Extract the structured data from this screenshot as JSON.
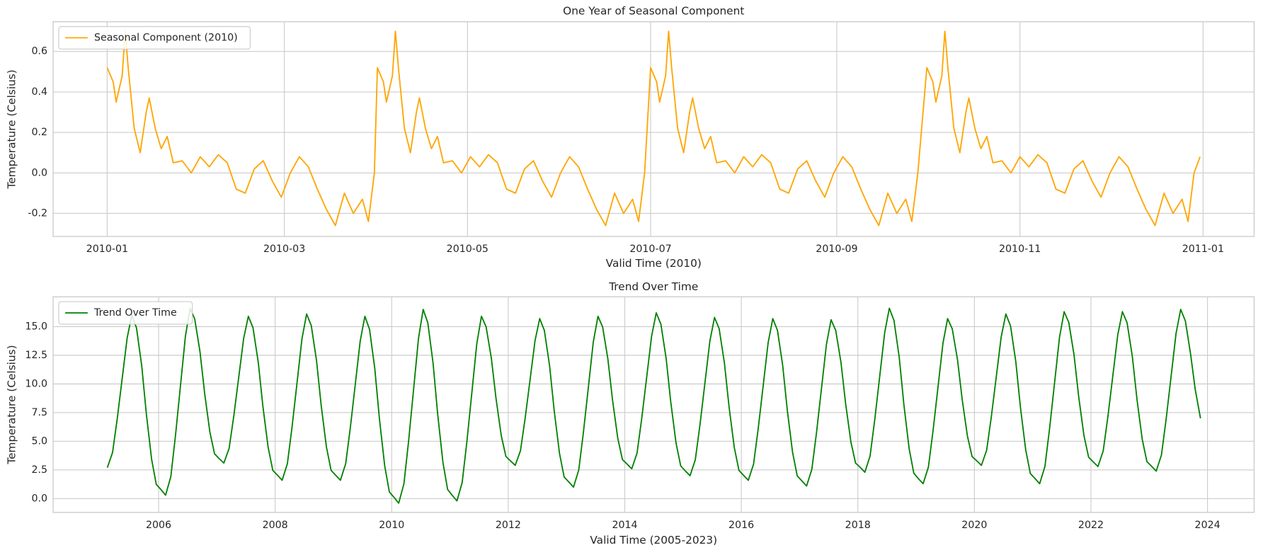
{
  "chart_data": [
    {
      "type": "line",
      "title": "One Year of Seasonal Component",
      "xlabel": "Valid Time (2010)",
      "ylabel": "Temperature (Celsius)",
      "grid": true,
      "legend": "upper left",
      "xlim": [
        "2009-12-14",
        "2011-01-18"
      ],
      "xticks": [
        {
          "value": "2010-01-01",
          "label": "2010-01"
        },
        {
          "value": "2010-03-01",
          "label": "2010-03"
        },
        {
          "value": "2010-05-01",
          "label": "2010-05"
        },
        {
          "value": "2010-07-01",
          "label": "2010-07"
        },
        {
          "value": "2010-09-01",
          "label": "2010-09"
        },
        {
          "value": "2010-11-01",
          "label": "2010-11"
        },
        {
          "value": "2011-01-01",
          "label": "2011-01"
        }
      ],
      "ylim": [
        -0.314,
        0.747
      ],
      "yticks": [
        -0.2,
        {
          "value": 0,
          "label": "0.0"
        },
        0.2,
        0.4,
        0.6
      ],
      "x": [
        "2010-01-01",
        "2010-01-03",
        "2010-01-04",
        "2010-01-06",
        "2010-01-07",
        "2010-01-08",
        "2010-01-10",
        "2010-01-12",
        "2010-01-14",
        "2010-01-15",
        "2010-01-17",
        "2010-01-19",
        "2010-01-21",
        "2010-01-23",
        "2010-01-26",
        "2010-01-29",
        "2010-02-01",
        "2010-02-04",
        "2010-02-07",
        "2010-02-10",
        "2010-02-13",
        "2010-02-16",
        "2010-02-19",
        "2010-02-22",
        "2010-02-25",
        "2010-02-28",
        "2010-03-03",
        "2010-03-06",
        "2010-03-09",
        "2010-03-12",
        "2010-03-15",
        "2010-03-18",
        "2010-03-21",
        "2010-03-24",
        "2010-03-27",
        "2010-03-29",
        "2010-03-31",
        "2010-04-01",
        "2010-04-03",
        "2010-04-04",
        "2010-04-06",
        "2010-04-07",
        "2010-04-08",
        "2010-04-10",
        "2010-04-12",
        "2010-04-14",
        "2010-04-15",
        "2010-04-17",
        "2010-04-19",
        "2010-04-21",
        "2010-04-23",
        "2010-04-26",
        "2010-04-29",
        "2010-05-02",
        "2010-05-05",
        "2010-05-08",
        "2010-05-11",
        "2010-05-14",
        "2010-05-17",
        "2010-05-20",
        "2010-05-23",
        "2010-05-26",
        "2010-05-29",
        "2010-06-01",
        "2010-06-04",
        "2010-06-07",
        "2010-06-10",
        "2010-06-13",
        "2010-06-16",
        "2010-06-19",
        "2010-06-22",
        "2010-06-25",
        "2010-06-27",
        "2010-06-29",
        "2010-07-01",
        "2010-07-03",
        "2010-07-04",
        "2010-07-06",
        "2010-07-07",
        "2010-07-08",
        "2010-07-10",
        "2010-07-12",
        "2010-07-14",
        "2010-07-15",
        "2010-07-17",
        "2010-07-19",
        "2010-07-21",
        "2010-07-23",
        "2010-07-26",
        "2010-07-29",
        "2010-08-01",
        "2010-08-04",
        "2010-08-07",
        "2010-08-10",
        "2010-08-13",
        "2010-08-16",
        "2010-08-19",
        "2010-08-22",
        "2010-08-25",
        "2010-08-28",
        "2010-08-31",
        "2010-09-03",
        "2010-09-06",
        "2010-09-09",
        "2010-09-12",
        "2010-09-15",
        "2010-09-18",
        "2010-09-21",
        "2010-09-24",
        "2010-09-26",
        "2010-09-28",
        "2010-10-01",
        "2010-10-03",
        "2010-10-04",
        "2010-10-06",
        "2010-10-07",
        "2010-10-08",
        "2010-10-10",
        "2010-10-12",
        "2010-10-14",
        "2010-10-15",
        "2010-10-17",
        "2010-10-19",
        "2010-10-21",
        "2010-10-23",
        "2010-10-26",
        "2010-10-29",
        "2010-11-01",
        "2010-11-04",
        "2010-11-07",
        "2010-11-10",
        "2010-11-13",
        "2010-11-16",
        "2010-11-19",
        "2010-11-22",
        "2010-11-25",
        "2010-11-28",
        "2010-12-01",
        "2010-12-04",
        "2010-12-07",
        "2010-12-10",
        "2010-12-13",
        "2010-12-16",
        "2010-12-19",
        "2010-12-22",
        "2010-12-25",
        "2010-12-27",
        "2010-12-29",
        "2010-12-31"
      ],
      "series": [
        {
          "name": "Seasonal Component (2010)",
          "color": "#ffa500",
          "values": [
            0.52,
            0.45,
            0.35,
            0.48,
            0.7,
            0.52,
            0.22,
            0.1,
            0.3,
            0.37,
            0.22,
            0.12,
            0.18,
            0.05,
            0.06,
            0.0,
            0.08,
            0.03,
            0.09,
            0.05,
            -0.08,
            -0.1,
            0.02,
            0.06,
            -0.04,
            -0.12,
            0.0,
            0.08,
            0.03,
            -0.08,
            -0.18,
            -0.26,
            -0.1,
            -0.2,
            -0.13,
            -0.24,
            0.0,
            0.52,
            0.45,
            0.35,
            0.48,
            0.7,
            0.52,
            0.22,
            0.1,
            0.3,
            0.37,
            0.22,
            0.12,
            0.18,
            0.05,
            0.06,
            0.0,
            0.08,
            0.03,
            0.09,
            0.05,
            -0.08,
            -0.1,
            0.02,
            0.06,
            -0.04,
            -0.12,
            0.0,
            0.08,
            0.03,
            -0.08,
            -0.18,
            -0.26,
            -0.1,
            -0.2,
            -0.13,
            -0.24,
            0.0,
            0.52,
            0.45,
            0.35,
            0.48,
            0.7,
            0.52,
            0.22,
            0.1,
            0.3,
            0.37,
            0.22,
            0.12,
            0.18,
            0.05,
            0.06,
            0.0,
            0.08,
            0.03,
            0.09,
            0.05,
            -0.08,
            -0.1,
            0.02,
            0.06,
            -0.04,
            -0.12,
            0.0,
            0.08,
            0.03,
            -0.08,
            -0.18,
            -0.26,
            -0.1,
            -0.2,
            -0.13,
            -0.24,
            0.0,
            0.52,
            0.45,
            0.35,
            0.48,
            0.7,
            0.52,
            0.22,
            0.1,
            0.3,
            0.37,
            0.22,
            0.12,
            0.18,
            0.05,
            0.06,
            0.0,
            0.08,
            0.03,
            0.09,
            0.05,
            -0.08,
            -0.1,
            0.02,
            0.06,
            -0.04,
            -0.12,
            0.0,
            0.08,
            0.03,
            -0.08,
            -0.18,
            -0.26,
            -0.1,
            -0.2,
            -0.13,
            -0.24,
            0.0,
            0.08
          ]
        }
      ]
    },
    {
      "type": "line",
      "title": "Trend Over Time",
      "xlabel": "Valid Time (2005-2023)",
      "ylabel": "Temperature (Celsius)",
      "grid": true,
      "legend": "upper left",
      "xlim": [
        2004.19,
        2024.8
      ],
      "xticks": [
        2006,
        2008,
        2010,
        2012,
        2014,
        2016,
        2018,
        2020,
        2022,
        2024
      ],
      "ylim": [
        -1.2,
        17.6
      ],
      "yticks": [
        {
          "value": 0,
          "label": "0.0"
        },
        2.5,
        {
          "value": 5,
          "label": "5.0"
        },
        7.5,
        {
          "value": 10,
          "label": "10.0"
        },
        12.5,
        {
          "value": 15,
          "label": "15.0"
        }
      ],
      "x": [
        2005.12,
        2005.21,
        2005.29,
        2005.38,
        2005.46,
        2005.54,
        2005.62,
        2005.71,
        2005.79,
        2005.88,
        2005.96,
        2006.04,
        2006.12,
        2006.21,
        2006.29,
        2006.38,
        2006.46,
        2006.54,
        2006.62,
        2006.71,
        2006.79,
        2006.88,
        2006.96,
        2007.04,
        2007.12,
        2007.21,
        2007.29,
        2007.38,
        2007.46,
        2007.54,
        2007.62,
        2007.71,
        2007.79,
        2007.88,
        2007.96,
        2008.04,
        2008.12,
        2008.21,
        2008.29,
        2008.38,
        2008.46,
        2008.54,
        2008.62,
        2008.71,
        2008.79,
        2008.88,
        2008.96,
        2009.04,
        2009.12,
        2009.21,
        2009.29,
        2009.38,
        2009.46,
        2009.54,
        2009.62,
        2009.71,
        2009.79,
        2009.88,
        2009.96,
        2010.04,
        2010.12,
        2010.21,
        2010.29,
        2010.38,
        2010.46,
        2010.54,
        2010.62,
        2010.71,
        2010.79,
        2010.88,
        2010.96,
        2011.04,
        2011.12,
        2011.21,
        2011.29,
        2011.38,
        2011.46,
        2011.54,
        2011.62,
        2011.71,
        2011.79,
        2011.88,
        2011.96,
        2012.04,
        2012.12,
        2012.21,
        2012.29,
        2012.38,
        2012.46,
        2012.54,
        2012.62,
        2012.71,
        2012.79,
        2012.88,
        2012.96,
        2013.04,
        2013.12,
        2013.21,
        2013.29,
        2013.38,
        2013.46,
        2013.54,
        2013.62,
        2013.71,
        2013.79,
        2013.88,
        2013.96,
        2014.04,
        2014.12,
        2014.21,
        2014.29,
        2014.38,
        2014.46,
        2014.54,
        2014.62,
        2014.71,
        2014.79,
        2014.88,
        2014.96,
        2015.04,
        2015.12,
        2015.21,
        2015.29,
        2015.38,
        2015.46,
        2015.54,
        2015.62,
        2015.71,
        2015.79,
        2015.88,
        2015.96,
        2016.04,
        2016.12,
        2016.21,
        2016.29,
        2016.38,
        2016.46,
        2016.54,
        2016.62,
        2016.71,
        2016.79,
        2016.88,
        2016.96,
        2017.04,
        2017.12,
        2017.21,
        2017.29,
        2017.38,
        2017.46,
        2017.54,
        2017.62,
        2017.71,
        2017.79,
        2017.88,
        2017.96,
        2018.04,
        2018.12,
        2018.21,
        2018.29,
        2018.38,
        2018.46,
        2018.54,
        2018.62,
        2018.71,
        2018.79,
        2018.88,
        2018.96,
        2019.04,
        2019.12,
        2019.21,
        2019.29,
        2019.38,
        2019.46,
        2019.54,
        2019.62,
        2019.71,
        2019.79,
        2019.88,
        2019.96,
        2020.04,
        2020.12,
        2020.21,
        2020.29,
        2020.38,
        2020.46,
        2020.54,
        2020.62,
        2020.71,
        2020.79,
        2020.88,
        2020.96,
        2021.04,
        2021.12,
        2021.21,
        2021.29,
        2021.38,
        2021.46,
        2021.54,
        2021.62,
        2021.71,
        2021.79,
        2021.88,
        2021.96,
        2022.04,
        2022.12,
        2022.21,
        2022.29,
        2022.38,
        2022.46,
        2022.54,
        2022.62,
        2022.71,
        2022.79,
        2022.88,
        2022.96,
        2023.04,
        2023.12,
        2023.21,
        2023.29,
        2023.38,
        2023.46,
        2023.54,
        2023.62,
        2023.71,
        2023.79,
        2023.88
      ],
      "series": [
        {
          "name": "Trend Over Time",
          "color": "#008000",
          "values": [
            2.7,
            4.03,
            6.96,
            10.68,
            14.0,
            16.0,
            14.9,
            11.6,
            7.37,
            3.44,
            1.24,
            0.79,
            0.3,
            1.93,
            5.52,
            10.08,
            14.16,
            16.6,
            15.66,
            12.82,
            9.18,
            5.8,
            3.91,
            3.48,
            3.1,
            4.38,
            7.2,
            10.78,
            13.98,
            15.9,
            14.9,
            11.9,
            8.04,
            4.46,
            2.46,
            2.04,
            1.6,
            3.05,
            6.24,
            10.3,
            13.93,
            16.1,
            15.09,
            12.04,
            8.13,
            4.5,
            2.47,
            2.03,
            1.6,
            3.03,
            6.18,
            10.18,
            13.76,
            15.9,
            14.76,
            11.34,
            6.94,
            2.86,
            0.58,
            0.11,
            -0.4,
            1.29,
            5.01,
            9.74,
            13.97,
            16.5,
            15.33,
            11.82,
            7.32,
            3.14,
            0.8,
            0.28,
            -0.2,
            1.41,
            4.95,
            9.46,
            13.49,
            15.9,
            14.99,
            12.26,
            8.75,
            5.5,
            3.68,
            3.28,
            2.9,
            4.18,
            7.0,
            10.58,
            13.78,
            15.7,
            14.67,
            11.58,
            7.62,
            3.94,
            1.88,
            1.45,
            1.0,
            2.49,
            5.77,
            9.94,
            13.67,
            15.9,
            14.97,
            12.18,
            8.59,
            5.26,
            3.4,
            3.01,
            2.6,
            3.96,
            6.95,
            10.76,
            14.16,
            16.2,
            15.21,
            12.22,
            8.39,
            4.84,
            2.85,
            2.41,
            2.0,
            3.38,
            6.42,
            10.28,
            13.73,
            15.8,
            14.81,
            11.82,
            7.99,
            4.44,
            2.45,
            2.02,
            1.6,
            3.01,
            6.11,
            10.06,
            13.59,
            15.7,
            14.68,
            11.61,
            7.67,
            4.02,
            1.98,
            1.54,
            1.1,
            2.55,
            5.74,
            9.8,
            13.43,
            15.6,
            14.67,
            11.88,
            8.29,
            4.96,
            3.1,
            2.73,
            2.3,
            3.73,
            6.88,
            10.88,
            14.46,
            16.6,
            15.53,
            12.32,
            8.19,
            4.36,
            2.22,
            1.73,
            1.3,
            2.74,
            5.91,
            9.94,
            13.54,
            15.7,
            14.8,
            12.12,
            8.66,
            5.46,
            3.67,
            3.3,
            2.9,
            4.22,
            7.12,
            10.82,
            14.12,
            16.1,
            15.06,
            11.96,
            7.96,
            4.26,
            2.19,
            1.75,
            1.3,
            2.8,
            6.1,
            10.3,
            14.05,
            16.3,
            15.36,
            12.52,
            8.88,
            5.5,
            3.61,
            3.2,
            2.8,
            4.15,
            7.12,
            10.9,
            14.28,
            16.3,
            15.33,
            12.41,
            8.66,
            5.18,
            3.23,
            2.82,
            2.4,
            3.81,
            6.91,
            10.86,
            14.39,
            16.5,
            15.5,
            12.6,
            9.5,
            7.0
          ]
        }
      ]
    }
  ]
}
